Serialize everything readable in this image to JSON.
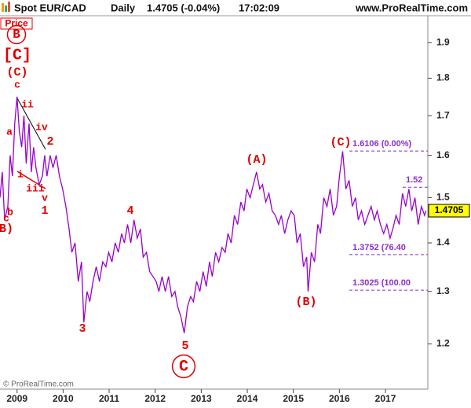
{
  "header": {
    "symbol": "Spot EUR/CAD",
    "period": "Daily",
    "quote": "1.4705 (-0.04%)",
    "time": "17:02:09",
    "site": "www.ProRealTime.com"
  },
  "panel_label": "Price",
  "copyright": "© ProRealTime.com",
  "chart_data": {
    "type": "line",
    "color": "#9900cc",
    "log_scale": true,
    "x": [
      2008.63,
      2008.68,
      2008.73,
      2008.8,
      2008.85,
      2008.9,
      2008.95,
      2009.0,
      2009.05,
      2009.1,
      2009.15,
      2009.2,
      2009.26,
      2009.31,
      2009.36,
      2009.41,
      2009.48,
      2009.55,
      2009.6,
      2009.65,
      2009.72,
      2009.78,
      2009.85,
      2009.92,
      2009.99,
      2010.06,
      2010.13,
      2010.19,
      2010.26,
      2010.33,
      2010.4,
      2010.45,
      2010.52,
      2010.58,
      2010.65,
      2010.72,
      2010.79,
      2010.86,
      2010.93,
      2010.99,
      2011.06,
      2011.13,
      2011.2,
      2011.27,
      2011.33,
      2011.4,
      2011.47,
      2011.54,
      2011.61,
      2011.68,
      2011.74,
      2011.81,
      2011.88,
      2011.95,
      2012.02,
      2012.08,
      2012.15,
      2012.22,
      2012.29,
      2012.36,
      2012.43,
      2012.49,
      2012.56,
      2012.63,
      2012.7,
      2012.77,
      2012.83,
      2012.9,
      2012.97,
      2013.04,
      2013.11,
      2013.18,
      2013.24,
      2013.31,
      2013.38,
      2013.45,
      2013.52,
      2013.58,
      2013.65,
      2013.72,
      2013.79,
      2013.86,
      2013.93,
      2013.99,
      2014.06,
      2014.13,
      2014.2,
      2014.27,
      2014.33,
      2014.4,
      2014.47,
      2014.54,
      2014.61,
      2014.68,
      2014.74,
      2014.81,
      2014.88,
      2014.95,
      2015.02,
      2015.08,
      2015.15,
      2015.22,
      2015.29,
      2015.32,
      2015.39,
      2015.46,
      2015.53,
      2015.59,
      2015.66,
      2015.73,
      2015.8,
      2015.87,
      2015.94,
      2016.0,
      2016.07,
      2016.14,
      2016.21,
      2016.28,
      2016.35,
      2016.41,
      2016.48,
      2016.55,
      2016.62,
      2016.69,
      2016.76,
      2016.82,
      2016.89,
      2016.96,
      2017.03,
      2017.1,
      2017.16,
      2017.23,
      2017.3,
      2017.37,
      2017.44,
      2017.51,
      2017.57,
      2017.64,
      2017.71,
      2017.78,
      2017.85,
      2017.88
    ],
    "values": [
      1.5,
      1.56,
      1.45,
      1.48,
      1.6,
      1.55,
      1.68,
      1.75,
      1.66,
      1.62,
      1.7,
      1.58,
      1.68,
      1.56,
      1.62,
      1.57,
      1.53,
      1.55,
      1.6,
      1.55,
      1.6,
      1.57,
      1.6,
      1.55,
      1.52,
      1.48,
      1.43,
      1.38,
      1.4,
      1.32,
      1.36,
      1.24,
      1.3,
      1.28,
      1.32,
      1.35,
      1.32,
      1.36,
      1.35,
      1.38,
      1.36,
      1.4,
      1.38,
      1.42,
      1.4,
      1.44,
      1.4,
      1.45,
      1.41,
      1.43,
      1.37,
      1.38,
      1.34,
      1.33,
      1.32,
      1.3,
      1.33,
      1.3,
      1.33,
      1.29,
      1.3,
      1.27,
      1.25,
      1.22,
      1.27,
      1.29,
      1.28,
      1.32,
      1.3,
      1.34,
      1.31,
      1.36,
      1.33,
      1.38,
      1.36,
      1.39,
      1.38,
      1.42,
      1.4,
      1.46,
      1.44,
      1.49,
      1.47,
      1.52,
      1.5,
      1.53,
      1.56,
      1.52,
      1.53,
      1.49,
      1.51,
      1.47,
      1.46,
      1.44,
      1.46,
      1.42,
      1.45,
      1.47,
      1.46,
      1.4,
      1.42,
      1.35,
      1.37,
      1.3,
      1.38,
      1.36,
      1.44,
      1.42,
      1.5,
      1.48,
      1.52,
      1.46,
      1.48,
      1.55,
      1.61,
      1.52,
      1.54,
      1.48,
      1.5,
      1.45,
      1.47,
      1.44,
      1.46,
      1.48,
      1.45,
      1.47,
      1.44,
      1.42,
      1.44,
      1.41,
      1.43,
      1.46,
      1.44,
      1.51,
      1.48,
      1.52,
      1.47,
      1.5,
      1.44,
      1.48,
      1.46,
      1.4705
    ],
    "xlim": [
      2008.63,
      2017.92
    ],
    "xticks": [
      2009,
      2010,
      2011,
      2012,
      2013,
      2014,
      2015,
      2016,
      2017
    ],
    "ylim": [
      1.12,
      1.98
    ],
    "yticks": [
      1.2,
      1.3,
      1.4,
      1.5,
      1.6,
      1.7,
      1.8,
      1.9
    ],
    "last_price": 1.4705,
    "fib_color": "#8b2fc9",
    "fib_levels": [
      {
        "value": 1.6106,
        "label": "1.6106 (0.00%)"
      },
      {
        "value": 1.524,
        "label": "1.52"
      },
      {
        "value": 1.3752,
        "label": "1.3752 (76.40"
      },
      {
        "value": 1.3025,
        "label": "1.3025 (100.00"
      }
    ],
    "annotation_color": "#e00000",
    "annotations": [
      "[C]",
      "(C)",
      "c",
      "a",
      "b",
      "c",
      "B)",
      "ii",
      "iv",
      "2",
      "i",
      "iii",
      "v",
      "1",
      "4",
      "3",
      "5",
      "(A)",
      "(B)",
      "(C)",
      "B",
      "C"
    ]
  }
}
